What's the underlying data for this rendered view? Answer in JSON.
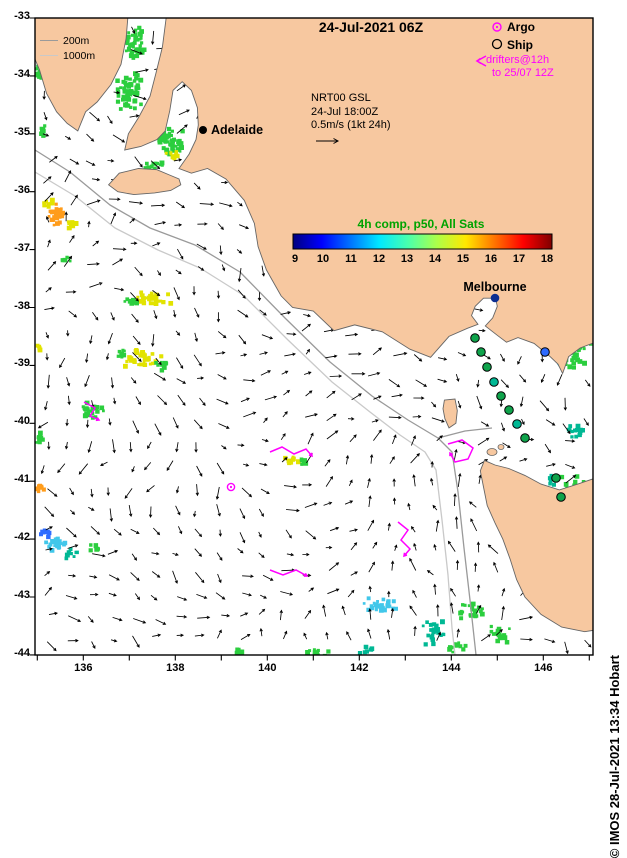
{
  "title": "24-Jul-2021 06Z",
  "colors": {
    "land": "#F7C8A0",
    "ocean": "#FFFFFF",
    "coast": "#666666",
    "magenta": "#FF00FF",
    "green_label": "#00A300",
    "contour_200m": "#9A9A9A",
    "contour_1000m": "#C9C9C9",
    "frame": "#000000"
  },
  "depth_legend": {
    "items": [
      {
        "label": "200m"
      },
      {
        "label": "1000m"
      }
    ]
  },
  "symbol_legend": {
    "argo": "Argo",
    "ship": "Ship",
    "drifters_line1": "drifters@12h",
    "drifters_line2": "to 25/07 12Z"
  },
  "annotation": {
    "line1": "NRT00 GSL",
    "line2": "24-Jul 18:00Z",
    "line3": "0.5m/s (1kt 24h)"
  },
  "colorbar": {
    "label": "4h comp, p50, All Sats",
    "ticks": [
      "9",
      "10",
      "11",
      "12",
      "13",
      "14",
      "15",
      "16",
      "17",
      "18"
    ],
    "min": 9,
    "max": 18,
    "palette": [
      "#00007F",
      "#0000FF",
      "#0074FF",
      "#00E8FF",
      "#49FFAD",
      "#ADFF49",
      "#FFE800",
      "#FF7400",
      "#FF0000",
      "#7F0000"
    ]
  },
  "cities": [
    {
      "name": "Adelaide"
    },
    {
      "name": "Melbourne"
    }
  ],
  "axes": {
    "lat_labels": [
      "-33",
      "-34",
      "-35",
      "-36",
      "-37",
      "-38",
      "-39",
      "-40",
      "-41",
      "-42",
      "-43",
      "-44"
    ],
    "lat_values": [
      -33,
      -34,
      -35,
      -36,
      -37,
      -38,
      -39,
      -40,
      -41,
      -42,
      -43,
      -44
    ],
    "lon_labels": [
      "136",
      "138",
      "140",
      "142",
      "144",
      "146"
    ],
    "lon_values": [
      136,
      138,
      140,
      142,
      144,
      146
    ]
  },
  "watermark": "© IMOS 28-Jul-2021 13:34 Hobart"
}
